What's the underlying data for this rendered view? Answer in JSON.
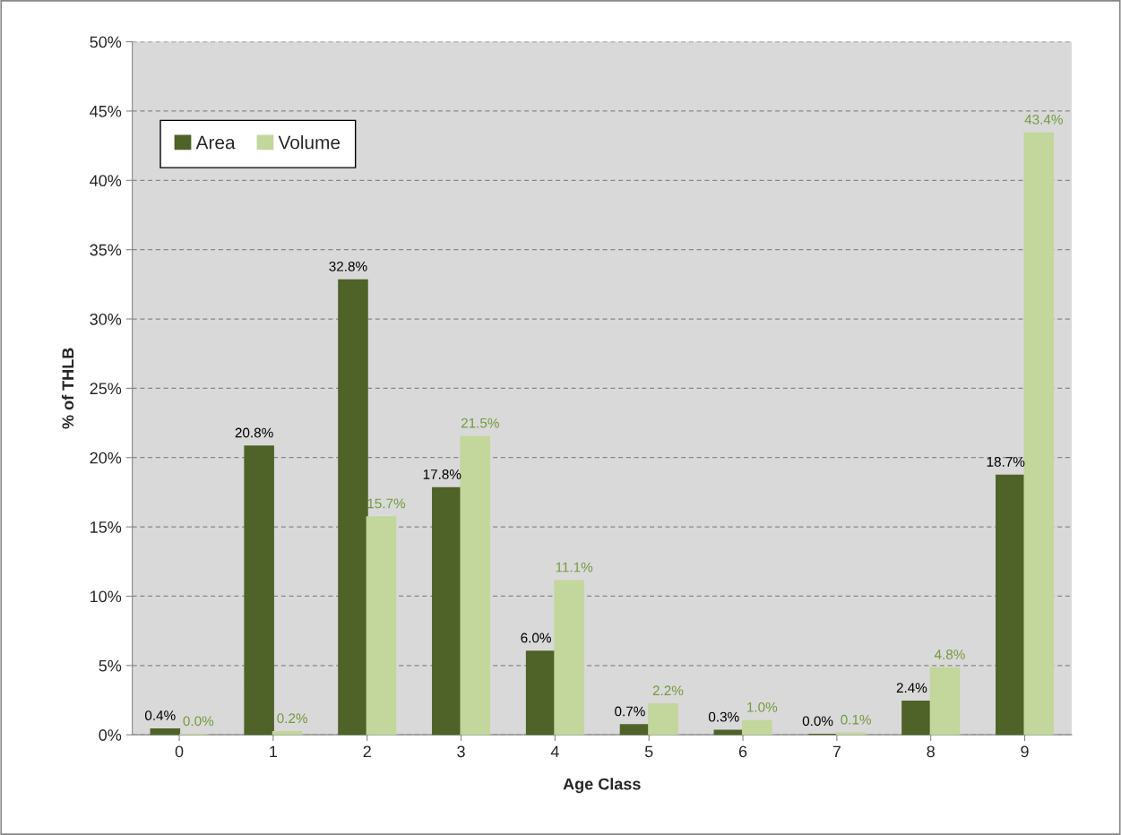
{
  "chart_data": {
    "type": "bar",
    "xlabel": "Age Class",
    "ylabel": "% of THLB",
    "categories": [
      "0",
      "1",
      "2",
      "3",
      "4",
      "5",
      "6",
      "7",
      "8",
      "9"
    ],
    "series": [
      {
        "name": "Area",
        "color": "#4f6228",
        "values": [
          0.4,
          20.8,
          32.8,
          17.8,
          6.0,
          0.7,
          0.3,
          0.0,
          2.4,
          18.7
        ],
        "value_labels": [
          "0.4%",
          "20.8%",
          "32.8%",
          "17.8%",
          "6.0%",
          "0.7%",
          "0.3%",
          "0.0%",
          "2.4%",
          "18.7%"
        ]
      },
      {
        "name": "Volume",
        "color": "#c3d69b",
        "values": [
          0.0,
          0.2,
          15.7,
          21.5,
          11.1,
          2.2,
          1.0,
          0.1,
          4.8,
          43.4
        ],
        "value_labels": [
          "0.0%",
          "0.2%",
          "15.7%",
          "21.5%",
          "11.1%",
          "2.2%",
          "1.0%",
          "0.1%",
          "4.8%",
          "43.4%"
        ]
      }
    ],
    "ylim": [
      0,
      50
    ],
    "yticks": [
      {
        "value": 0,
        "label": "0%"
      },
      {
        "value": 5,
        "label": "5%"
      },
      {
        "value": 10,
        "label": "10%"
      },
      {
        "value": 15,
        "label": "15%"
      },
      {
        "value": 20,
        "label": "20%"
      },
      {
        "value": 25,
        "label": "25%"
      },
      {
        "value": 30,
        "label": "30%"
      },
      {
        "value": 35,
        "label": "35%"
      },
      {
        "value": 40,
        "label": "40%"
      },
      {
        "value": 45,
        "label": "45%"
      },
      {
        "value": 50,
        "label": "50%"
      }
    ],
    "grid": "y",
    "line_style": "dashed",
    "legend": "top left"
  }
}
